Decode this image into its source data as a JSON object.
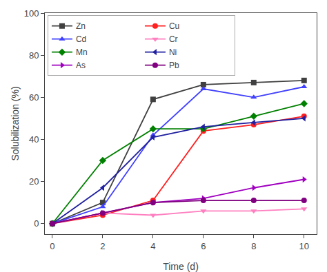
{
  "chart_data": {
    "type": "line",
    "xlabel": "Time (d)",
    "ylabel": "Solubilization (%)",
    "x": [
      0,
      2,
      4,
      6,
      8,
      10
    ],
    "series": [
      {
        "name": "Zn",
        "color": "#404040",
        "marker": "square",
        "values": [
          0,
          10,
          59,
          66,
          67,
          68
        ]
      },
      {
        "name": "Cu",
        "color": "#FF2020",
        "marker": "circle",
        "values": [
          0,
          4,
          11,
          44,
          47,
          51
        ]
      },
      {
        "name": "Cd",
        "color": "#4040FF",
        "marker": "triangle-up",
        "values": [
          0,
          8,
          42,
          64,
          60,
          65
        ]
      },
      {
        "name": "Cr",
        "color": "#FF80C0",
        "marker": "triangle-down",
        "values": [
          0,
          5,
          4,
          6,
          6,
          7
        ]
      },
      {
        "name": "Mn",
        "color": "#008000",
        "marker": "diamond",
        "values": [
          0,
          30,
          45,
          45,
          51,
          57
        ]
      },
      {
        "name": "Ni",
        "color": "#2020A0",
        "marker": "triangle-left",
        "values": [
          0,
          17,
          41,
          46,
          48,
          50
        ]
      },
      {
        "name": "As",
        "color": "#A000C0",
        "marker": "triangle-right",
        "values": [
          0,
          5,
          10,
          12,
          17,
          21
        ]
      },
      {
        "name": "Pb",
        "color": "#800080",
        "marker": "circle",
        "values": [
          0,
          5,
          10,
          11,
          11,
          11
        ]
      }
    ],
    "xlim": [
      -0.3,
      10.5
    ],
    "ylim": [
      -5,
      100
    ],
    "xticks": [
      0,
      2,
      4,
      6,
      8,
      10
    ],
    "yticks": [
      0,
      20,
      40,
      60,
      80,
      100
    ],
    "grid": false,
    "legend": "upper left"
  }
}
